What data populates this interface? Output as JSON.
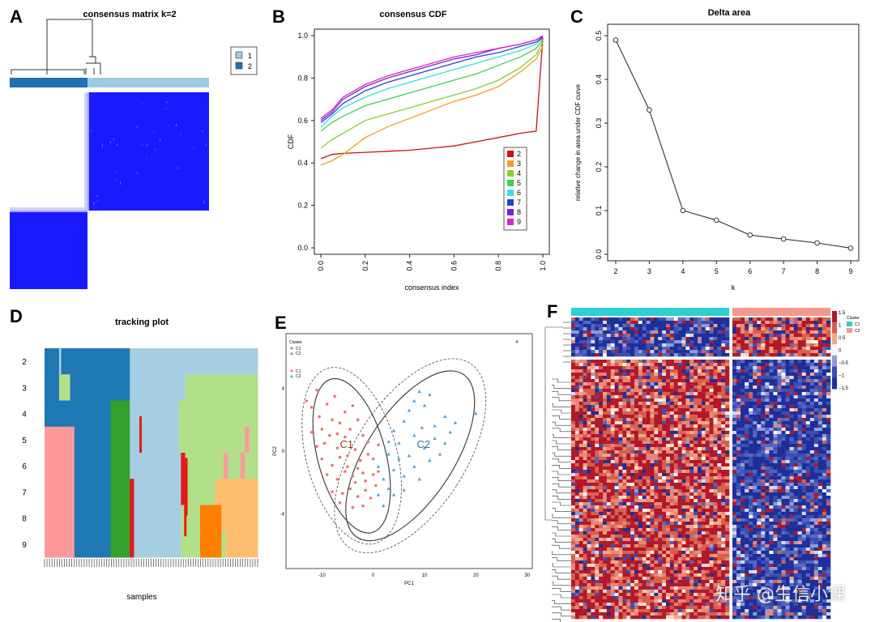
{
  "panels": {
    "A": {
      "label": "A",
      "title": "consensus matrix k=2",
      "legend": [
        "1",
        "2"
      ]
    },
    "B": {
      "label": "B",
      "title": "consensus CDF"
    },
    "C": {
      "label": "C",
      "title": "Delta area"
    },
    "D": {
      "label": "D",
      "title": "tracking plot",
      "xlabel": "samples",
      "rows": [
        "2",
        "3",
        "4",
        "5",
        "6",
        "7",
        "8",
        "9"
      ]
    },
    "E": {
      "label": "E",
      "legend_title": "Cluster",
      "legend": [
        "C1",
        "C2"
      ]
    },
    "F": {
      "label": "F",
      "legend_title": "Cluster",
      "legend": [
        "C1",
        "C2"
      ]
    }
  },
  "colors": {
    "cluster_light": "#9ecae1",
    "cluster_dark": "#2171b5",
    "consensus_blue": "#1a1aff",
    "c1": "#e8786a",
    "c2": "#4aa3df",
    "annot_c1": "#2ecfd3",
    "annot_c2": "#f09a8e"
  },
  "chart_data": [
    {
      "type": "line",
      "panel": "B",
      "title": "consensus CDF",
      "xlabel": "consensus index",
      "ylabel": "CDF",
      "xlim": [
        0,
        1
      ],
      "ylim": [
        0,
        1
      ],
      "xticks": [
        "0.0",
        "0.2",
        "0.4",
        "0.6",
        "0.8",
        "1.0"
      ],
      "yticks": [
        "0.0",
        "0.2",
        "0.4",
        "0.6",
        "0.8",
        "1.0"
      ],
      "x": [
        0,
        0.05,
        0.1,
        0.2,
        0.3,
        0.4,
        0.5,
        0.6,
        0.7,
        0.8,
        0.9,
        0.97,
        1.0
      ],
      "series": [
        {
          "name": "2",
          "color": "#cc1111",
          "values": [
            0.42,
            0.44,
            0.445,
            0.45,
            0.455,
            0.46,
            0.47,
            0.48,
            0.5,
            0.52,
            0.54,
            0.55,
            0.99
          ]
        },
        {
          "name": "3",
          "color": "#f0a020",
          "values": [
            0.39,
            0.41,
            0.44,
            0.52,
            0.57,
            0.61,
            0.65,
            0.69,
            0.72,
            0.76,
            0.83,
            0.89,
            0.95
          ]
        },
        {
          "name": "4",
          "color": "#8acd32",
          "values": [
            0.47,
            0.51,
            0.54,
            0.6,
            0.63,
            0.66,
            0.69,
            0.72,
            0.75,
            0.79,
            0.85,
            0.91,
            0.97
          ]
        },
        {
          "name": "5",
          "color": "#3ed150",
          "values": [
            0.55,
            0.59,
            0.62,
            0.67,
            0.7,
            0.73,
            0.76,
            0.79,
            0.82,
            0.86,
            0.9,
            0.94,
            0.98
          ]
        },
        {
          "name": "6",
          "color": "#35e0e0",
          "values": [
            0.57,
            0.62,
            0.66,
            0.71,
            0.75,
            0.78,
            0.81,
            0.84,
            0.87,
            0.9,
            0.93,
            0.96,
            0.99
          ]
        },
        {
          "name": "7",
          "color": "#2240dd",
          "values": [
            0.59,
            0.63,
            0.68,
            0.74,
            0.78,
            0.81,
            0.84,
            0.87,
            0.9,
            0.92,
            0.95,
            0.97,
            0.99
          ]
        },
        {
          "name": "8",
          "color": "#7a22cc",
          "values": [
            0.6,
            0.64,
            0.7,
            0.76,
            0.8,
            0.83,
            0.86,
            0.89,
            0.91,
            0.94,
            0.96,
            0.98,
            0.995
          ]
        },
        {
          "name": "9",
          "color": "#dd22cc",
          "values": [
            0.61,
            0.65,
            0.71,
            0.77,
            0.81,
            0.84,
            0.87,
            0.9,
            0.92,
            0.94,
            0.96,
            0.98,
            1.0
          ]
        }
      ],
      "legend_position": "bottom-right"
    },
    {
      "type": "line",
      "panel": "C",
      "title": "Delta area",
      "xlabel": "k",
      "ylabel": "relative change in area under CDF curve",
      "x": [
        2,
        3,
        4,
        5,
        6,
        7,
        8,
        9
      ],
      "values": [
        0.49,
        0.33,
        0.1,
        0.078,
        0.044,
        0.035,
        0.026,
        0.014
      ],
      "xticks": [
        "2",
        "3",
        "4",
        "5",
        "6",
        "7",
        "8",
        "9"
      ],
      "yticks": [
        "0.0",
        "0.1",
        "0.2",
        "0.3",
        "0.4",
        "0.5"
      ],
      "xlim": [
        2,
        9
      ],
      "ylim": [
        0,
        0.5
      ]
    },
    {
      "type": "scatter",
      "panel": "E",
      "xlabel": "PC1",
      "ylabel": "PC2",
      "xlim": [
        -17,
        31
      ],
      "ylim": [
        -7.5,
        7.5
      ],
      "xticks": [
        "-10",
        "0",
        "10",
        "20",
        "30"
      ],
      "yticks": [
        "-4",
        "0",
        "4"
      ],
      "series": [
        {
          "name": "C1",
          "label": "C1",
          "color": "#e8786a",
          "shape": "circle",
          "points": [
            [
              -13,
              3.2
            ],
            [
              -12,
              2.8
            ],
            [
              -11,
              3.9
            ],
            [
              -10.5,
              2.2
            ],
            [
              -9,
              3.0
            ],
            [
              -8,
              2.0
            ],
            [
              -7.5,
              3.5
            ],
            [
              -12,
              1.2
            ],
            [
              -10,
              1.4
            ],
            [
              -8.5,
              1.0
            ],
            [
              -6.5,
              1.8
            ],
            [
              -5.5,
              2.5
            ],
            [
              -4,
              2.9
            ],
            [
              -11,
              0.3
            ],
            [
              -9.5,
              0.5
            ],
            [
              -7,
              0.2
            ],
            [
              -5.5,
              0.9
            ],
            [
              -4.5,
              1.4
            ],
            [
              -3,
              2.0
            ],
            [
              -2,
              1.0
            ],
            [
              -1,
              0.6
            ],
            [
              -10,
              -0.5
            ],
            [
              -8,
              -0.9
            ],
            [
              -6.5,
              -0.4
            ],
            [
              -5,
              -0.3
            ],
            [
              -3.5,
              0.1
            ],
            [
              -2.5,
              -0.6
            ],
            [
              -1,
              -0.2
            ],
            [
              0,
              -0.5
            ],
            [
              1,
              0.4
            ],
            [
              -9,
              -1.5
            ],
            [
              -7,
              -1.8
            ],
            [
              -5.5,
              -1.3
            ],
            [
              -4,
              -1.6
            ],
            [
              -3,
              -1.1
            ],
            [
              -1.5,
              -1.9
            ],
            [
              0,
              -1.5
            ],
            [
              1,
              -1.3
            ],
            [
              -8,
              -2.6
            ],
            [
              -6,
              -2.7
            ],
            [
              -4.5,
              -2.4
            ],
            [
              -3,
              -2.9
            ],
            [
              -1.5,
              -2.5
            ],
            [
              0.5,
              -2.2
            ],
            [
              -6.5,
              -3.3
            ],
            [
              -4,
              -3.6
            ],
            [
              -2,
              -3.5
            ],
            [
              -0.5,
              -3.0
            ],
            [
              -5,
              -1.0
            ],
            [
              -2,
              -1.4
            ],
            [
              -7,
              1.1
            ],
            [
              -3.5,
              -2.0
            ]
          ]
        },
        {
          "name": "C2",
          "label": "C2",
          "color": "#4aa3df",
          "shape": "triangle",
          "points": [
            [
              28,
              7.0
            ],
            [
              20,
              2.4
            ],
            [
              16,
              1.8
            ],
            [
              14,
              2.2
            ],
            [
              12,
              1.6
            ],
            [
              9,
              3.8
            ],
            [
              8,
              3.2
            ],
            [
              10,
              2.9
            ],
            [
              11,
              3.6
            ],
            [
              7,
              2.6
            ],
            [
              6,
              1.9
            ],
            [
              4,
              1.3
            ],
            [
              5,
              0.5
            ],
            [
              8,
              1.0
            ],
            [
              9.5,
              1.5
            ],
            [
              12,
              0.8
            ],
            [
              14,
              0.5
            ],
            [
              15,
              1.2
            ],
            [
              10,
              0.2
            ],
            [
              7,
              -0.3
            ],
            [
              5,
              -0.5
            ],
            [
              3,
              -0.2
            ],
            [
              4,
              -1.2
            ],
            [
              6,
              -1.6
            ],
            [
              8,
              -1.0
            ],
            [
              2,
              -1.8
            ],
            [
              3,
              -2.4
            ],
            [
              1,
              -2.8
            ],
            [
              4,
              -2.8
            ],
            [
              2,
              -3.5
            ],
            [
              6,
              -2.5
            ],
            [
              11,
              -0.6
            ],
            [
              9,
              -1.8
            ],
            [
              13,
              -0.2
            ],
            [
              3,
              0.6
            ],
            [
              1,
              -1.0
            ]
          ]
        }
      ],
      "annotations": [
        "C1",
        "C2"
      ]
    }
  ],
  "heatmap": {
    "colorbar_ticks": [
      "1.5",
      "1",
      "0.5",
      "0",
      "−0.5",
      "−1",
      "−1.5"
    ]
  },
  "tracking": {
    "colors": {
      "light": "#a6cee3",
      "dark": "#1f78b4",
      "lgreen": "#b2df8a",
      "green": "#33a02c",
      "pink": "#fb9a99",
      "red": "#e31a1c",
      "lorange": "#fdbf6f",
      "orange": "#ff7f00"
    }
  },
  "watermark": "知乎 @生信小课"
}
